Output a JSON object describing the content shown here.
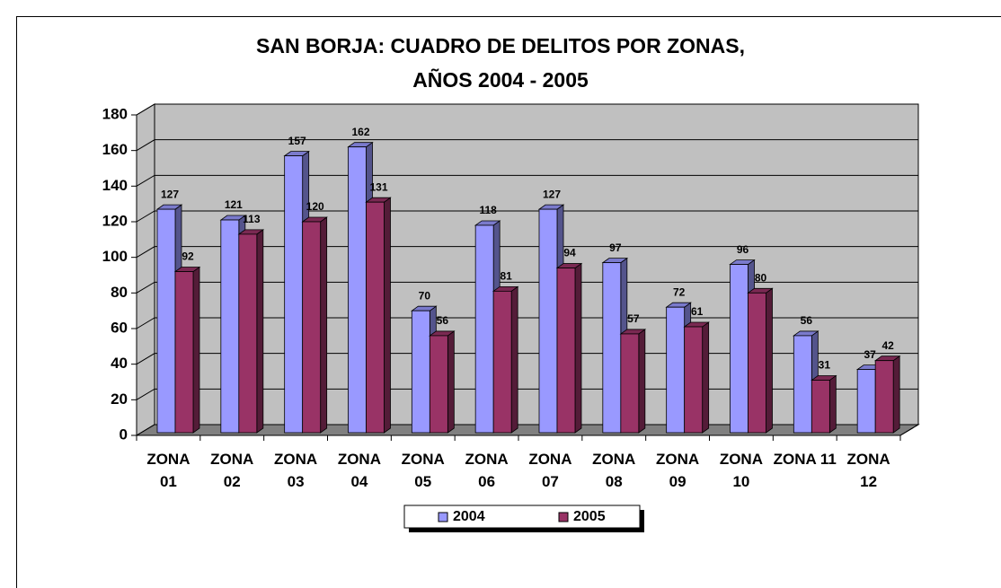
{
  "chart_data": {
    "type": "bar",
    "title": "SAN BORJA: CUADRO DE DELITOS POR ZONAS, AÑOS 2004 - 2005",
    "categories": [
      "ZONA 01",
      "ZONA 02",
      "ZONA 03",
      "ZONA 04",
      "ZONA 05",
      "ZONA 06",
      "ZONA 07",
      "ZONA 08",
      "ZONA 09",
      "ZONA 10",
      "ZONA 11",
      "ZONA 12"
    ],
    "series": [
      {
        "name": "2004",
        "color": "#9999ff",
        "values": [
          127,
          121,
          157,
          162,
          70,
          118,
          127,
          97,
          72,
          96,
          56,
          37
        ]
      },
      {
        "name": "2005",
        "color": "#993366",
        "values": [
          92,
          113,
          120,
          131,
          56,
          81,
          94,
          57,
          61,
          80,
          31,
          42
        ]
      }
    ],
    "ylim": [
      0,
      180
    ],
    "yticks": [
      0,
      20,
      40,
      60,
      80,
      100,
      120,
      140,
      160,
      180
    ],
    "grid": true,
    "legend": "bottom"
  }
}
